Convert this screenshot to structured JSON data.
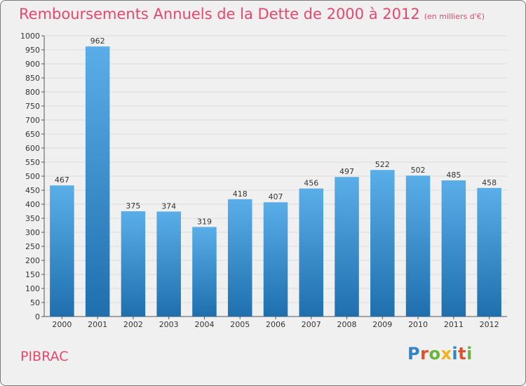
{
  "title": "Remboursements Annuels de la Dette de 2000 à 2012",
  "subtitle": "(en milliers d'€)",
  "town": "PIBRAC",
  "logo_text": "Proxiti",
  "colors": {
    "title": "#e8476c",
    "bar_top": "#5aaee8",
    "bar_bottom": "#1f6fae",
    "grid": "#dcdcdc",
    "background": "#f0f0f0"
  },
  "chart_data": {
    "type": "bar",
    "title": "Remboursements Annuels de la Dette de 2000 à 2012",
    "categories": [
      "2000",
      "2001",
      "2002",
      "2003",
      "2004",
      "2005",
      "2006",
      "2007",
      "2008",
      "2009",
      "2010",
      "2011",
      "2012"
    ],
    "values": [
      467,
      962,
      375,
      374,
      319,
      418,
      407,
      456,
      497,
      522,
      502,
      485,
      458
    ],
    "ylim": [
      0,
      1000
    ],
    "yticks": [
      0,
      50,
      100,
      150,
      200,
      250,
      300,
      350,
      400,
      450,
      500,
      550,
      600,
      650,
      700,
      750,
      800,
      850,
      900,
      950,
      1000
    ],
    "grid": true,
    "xlabel": "",
    "ylabel": ""
  }
}
